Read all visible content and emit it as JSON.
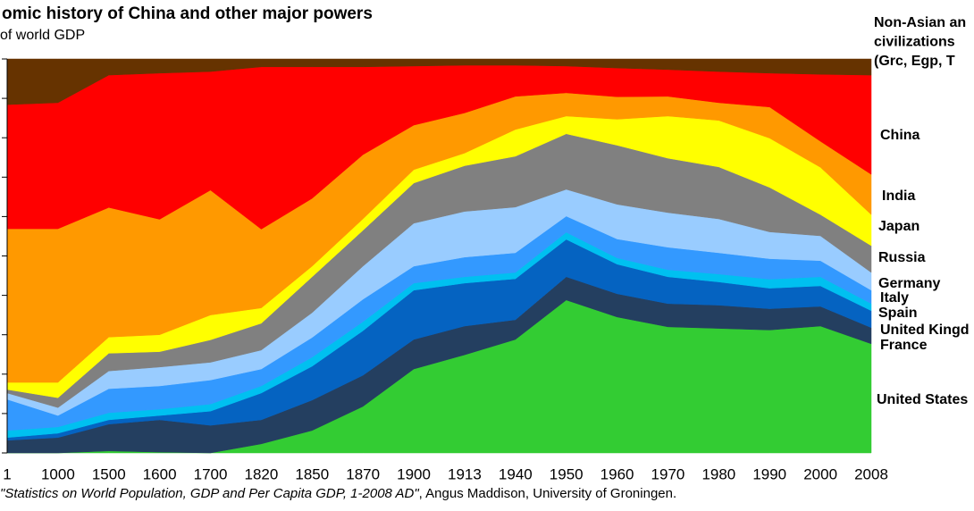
{
  "chart_data": {
    "type": "stacked_area",
    "title": "omic history of China and other major powers",
    "subtitle": "of world GDP",
    "source": [
      "\"Statistics on World Population, GDP and Per Capita GDP, 1-2008 AD\"",
      ", Angus Maddison, University of Groningen."
    ],
    "categories": [
      "1",
      "1000",
      "1500",
      "1600",
      "1700",
      "1820",
      "1850",
      "1870",
      "1900",
      "1913",
      "1940",
      "1950",
      "1960",
      "1970",
      "1980",
      "1990",
      "2000",
      "2008"
    ],
    "ylim": [
      0,
      100
    ],
    "yticks": [
      0,
      10,
      20,
      30,
      40,
      50,
      60,
      70,
      80,
      90,
      100
    ],
    "series": [
      {
        "name": "United States",
        "color": "#33cc33",
        "values": [
          0,
          0,
          0.5,
          0.2,
          0,
          2.3,
          5.7,
          11.8,
          21.3,
          24.9,
          28.8,
          38.8,
          34.5,
          32.0,
          31.6,
          31.2,
          32.2,
          27.7
        ]
      },
      {
        "name": "France",
        "color": "#243f60",
        "values": [
          3.2,
          3.9,
          6.8,
          8.2,
          7.0,
          6.1,
          7.7,
          7.9,
          7.5,
          7.3,
          5.0,
          5.9,
          5.9,
          5.9,
          5.9,
          5.4,
          5.0,
          4.1
        ]
      },
      {
        "name": "United Kingd",
        "color": "#0563c1",
        "values": [
          0.7,
          1.1,
          1.1,
          1.1,
          3.6,
          6.8,
          8.6,
          11.3,
          12.5,
          10.9,
          10.4,
          9.5,
          7.5,
          6.8,
          5.9,
          5.2,
          5.2,
          4.3
        ]
      },
      {
        "name": "Spain",
        "color": "#00c0f0",
        "values": [
          1.8,
          1.6,
          1.8,
          1.6,
          1.8,
          1.8,
          2.3,
          2.3,
          1.8,
          1.6,
          1.6,
          1.8,
          1.6,
          1.8,
          2.0,
          2.3,
          2.3,
          1.8
        ]
      },
      {
        "name": "Italy",
        "color": "#3399ff",
        "values": [
          7.9,
          2.9,
          6.1,
          5.9,
          6.1,
          4.3,
          5.0,
          5.7,
          4.3,
          5.0,
          5.0,
          4.1,
          4.8,
          5.7,
          5.4,
          5.2,
          4.1,
          3.4
        ]
      },
      {
        "name": "Germany",
        "color": "#99ccff",
        "values": [
          1.6,
          2.0,
          4.5,
          4.8,
          4.5,
          4.8,
          6.3,
          8.4,
          10.9,
          11.6,
          11.6,
          6.8,
          8.8,
          8.8,
          8.6,
          6.8,
          6.3,
          4.5
        ]
      },
      {
        "name": "Russia",
        "color": "#808080",
        "values": [
          0.9,
          2.5,
          4.5,
          3.9,
          5.7,
          6.8,
          9.1,
          9.1,
          10.2,
          11.6,
          12.9,
          14.1,
          15.0,
          13.8,
          13.2,
          11.3,
          5.4,
          6.8
        ]
      },
      {
        "name": "Japan",
        "color": "#ffff00",
        "values": [
          1.8,
          3.9,
          4.1,
          4.3,
          6.3,
          3.9,
          2.7,
          2.9,
          3.4,
          3.2,
          6.8,
          4.5,
          6.6,
          10.7,
          11.8,
          12.5,
          12.0,
          7.9
        ]
      },
      {
        "name": "India",
        "color": "#ff9900",
        "values": [
          39.0,
          39.0,
          32.9,
          29.3,
          31.7,
          20.0,
          17.2,
          16.3,
          11.3,
          10.2,
          8.4,
          5.9,
          5.7,
          5.0,
          4.5,
          7.9,
          6.6,
          10.2
        ]
      },
      {
        "name": "China",
        "color": "#ff0000",
        "values": [
          31.5,
          32.0,
          33.6,
          37.1,
          30.1,
          41.2,
          33.4,
          22.3,
          15.0,
          12.1,
          7.9,
          6.8,
          7.3,
          6.8,
          7.9,
          8.6,
          17.0,
          25.2
        ]
      },
      {
        "name": "Non-Asian an\ncivilizations\n(Grc, Egp, T",
        "color": "#663300",
        "values": [
          11.6,
          11.1,
          4.1,
          3.6,
          3.2,
          2.0,
          2.0,
          2.0,
          1.8,
          1.6,
          1.6,
          1.8,
          2.3,
          2.7,
          3.2,
          3.6,
          3.9,
          4.1
        ]
      }
    ]
  }
}
